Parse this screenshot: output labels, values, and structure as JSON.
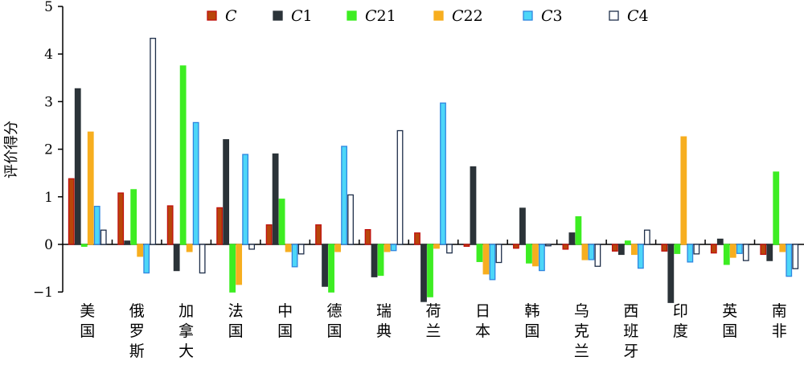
{
  "chart_data": {
    "type": "bar",
    "title": "",
    "xlabel": "",
    "ylabel": "评价得分",
    "ylim": [
      -1,
      5
    ],
    "yticks": [
      "−1",
      "0",
      "1",
      "2",
      "3",
      "4",
      "5"
    ],
    "legend_position": "top",
    "categories": [
      "美国",
      "俄罗斯",
      "加拿大",
      "法国",
      "中国",
      "德国",
      "瑞典",
      "荷兰",
      "日本",
      "韩国",
      "乌克兰",
      "西班牙",
      "印度",
      "英国",
      "南非"
    ],
    "series": [
      {
        "name": "C",
        "label_main": "C",
        "label_sub": "",
        "fill": "#b8460a",
        "stroke": "#c0100e",
        "values": [
          1.38,
          1.08,
          0.81,
          0.77,
          0.41,
          0.41,
          0.31,
          0.24,
          -0.04,
          -0.08,
          -0.1,
          -0.14,
          -0.14,
          -0.18,
          -0.21
        ]
      },
      {
        "name": "C1",
        "label_main": "C",
        "label_sub": "1",
        "fill": "#2b3338",
        "stroke": "#2b3338",
        "values": [
          3.27,
          0.07,
          -0.55,
          2.2,
          1.9,
          -0.88,
          -0.68,
          -1.2,
          1.63,
          0.76,
          0.24,
          -0.21,
          -1.22,
          0.11,
          -0.34
        ]
      },
      {
        "name": "C21",
        "label_main": "C",
        "label_sub": "21",
        "fill": "#3ded22",
        "stroke": "#3ded22",
        "values": [
          -0.04,
          1.15,
          3.75,
          -1.0,
          0.95,
          -1.0,
          -0.65,
          -1.1,
          -0.36,
          -0.39,
          0.58,
          0.07,
          -0.19,
          -0.42,
          1.52
        ]
      },
      {
        "name": "C22",
        "label_main": "C",
        "label_sub": "22",
        "fill": "#f7ae1f",
        "stroke": "#f7ae1f",
        "values": [
          2.36,
          -0.25,
          -0.15,
          -0.84,
          -0.15,
          -0.15,
          -0.15,
          -0.08,
          -0.62,
          -0.45,
          -0.32,
          -0.21,
          2.26,
          -0.27,
          -0.15
        ]
      },
      {
        "name": "C3",
        "label_main": "C",
        "label_sub": "3",
        "fill": "#4dd6f8",
        "stroke": "#2f86e0",
        "values": [
          0.8,
          -0.6,
          2.56,
          1.89,
          -0.47,
          2.06,
          -0.13,
          2.97,
          -0.74,
          -0.55,
          -0.32,
          -0.5,
          -0.37,
          -0.19,
          -0.67
        ]
      },
      {
        "name": "C4",
        "label_main": "C",
        "label_sub": "4",
        "fill": "#ffffff",
        "stroke": "#1f2f4a",
        "values": [
          0.3,
          4.33,
          -0.6,
          -0.1,
          -0.2,
          1.04,
          2.39,
          -0.18,
          -0.38,
          -0.03,
          -0.46,
          0.3,
          -0.2,
          -0.34,
          -0.51
        ]
      }
    ]
  }
}
